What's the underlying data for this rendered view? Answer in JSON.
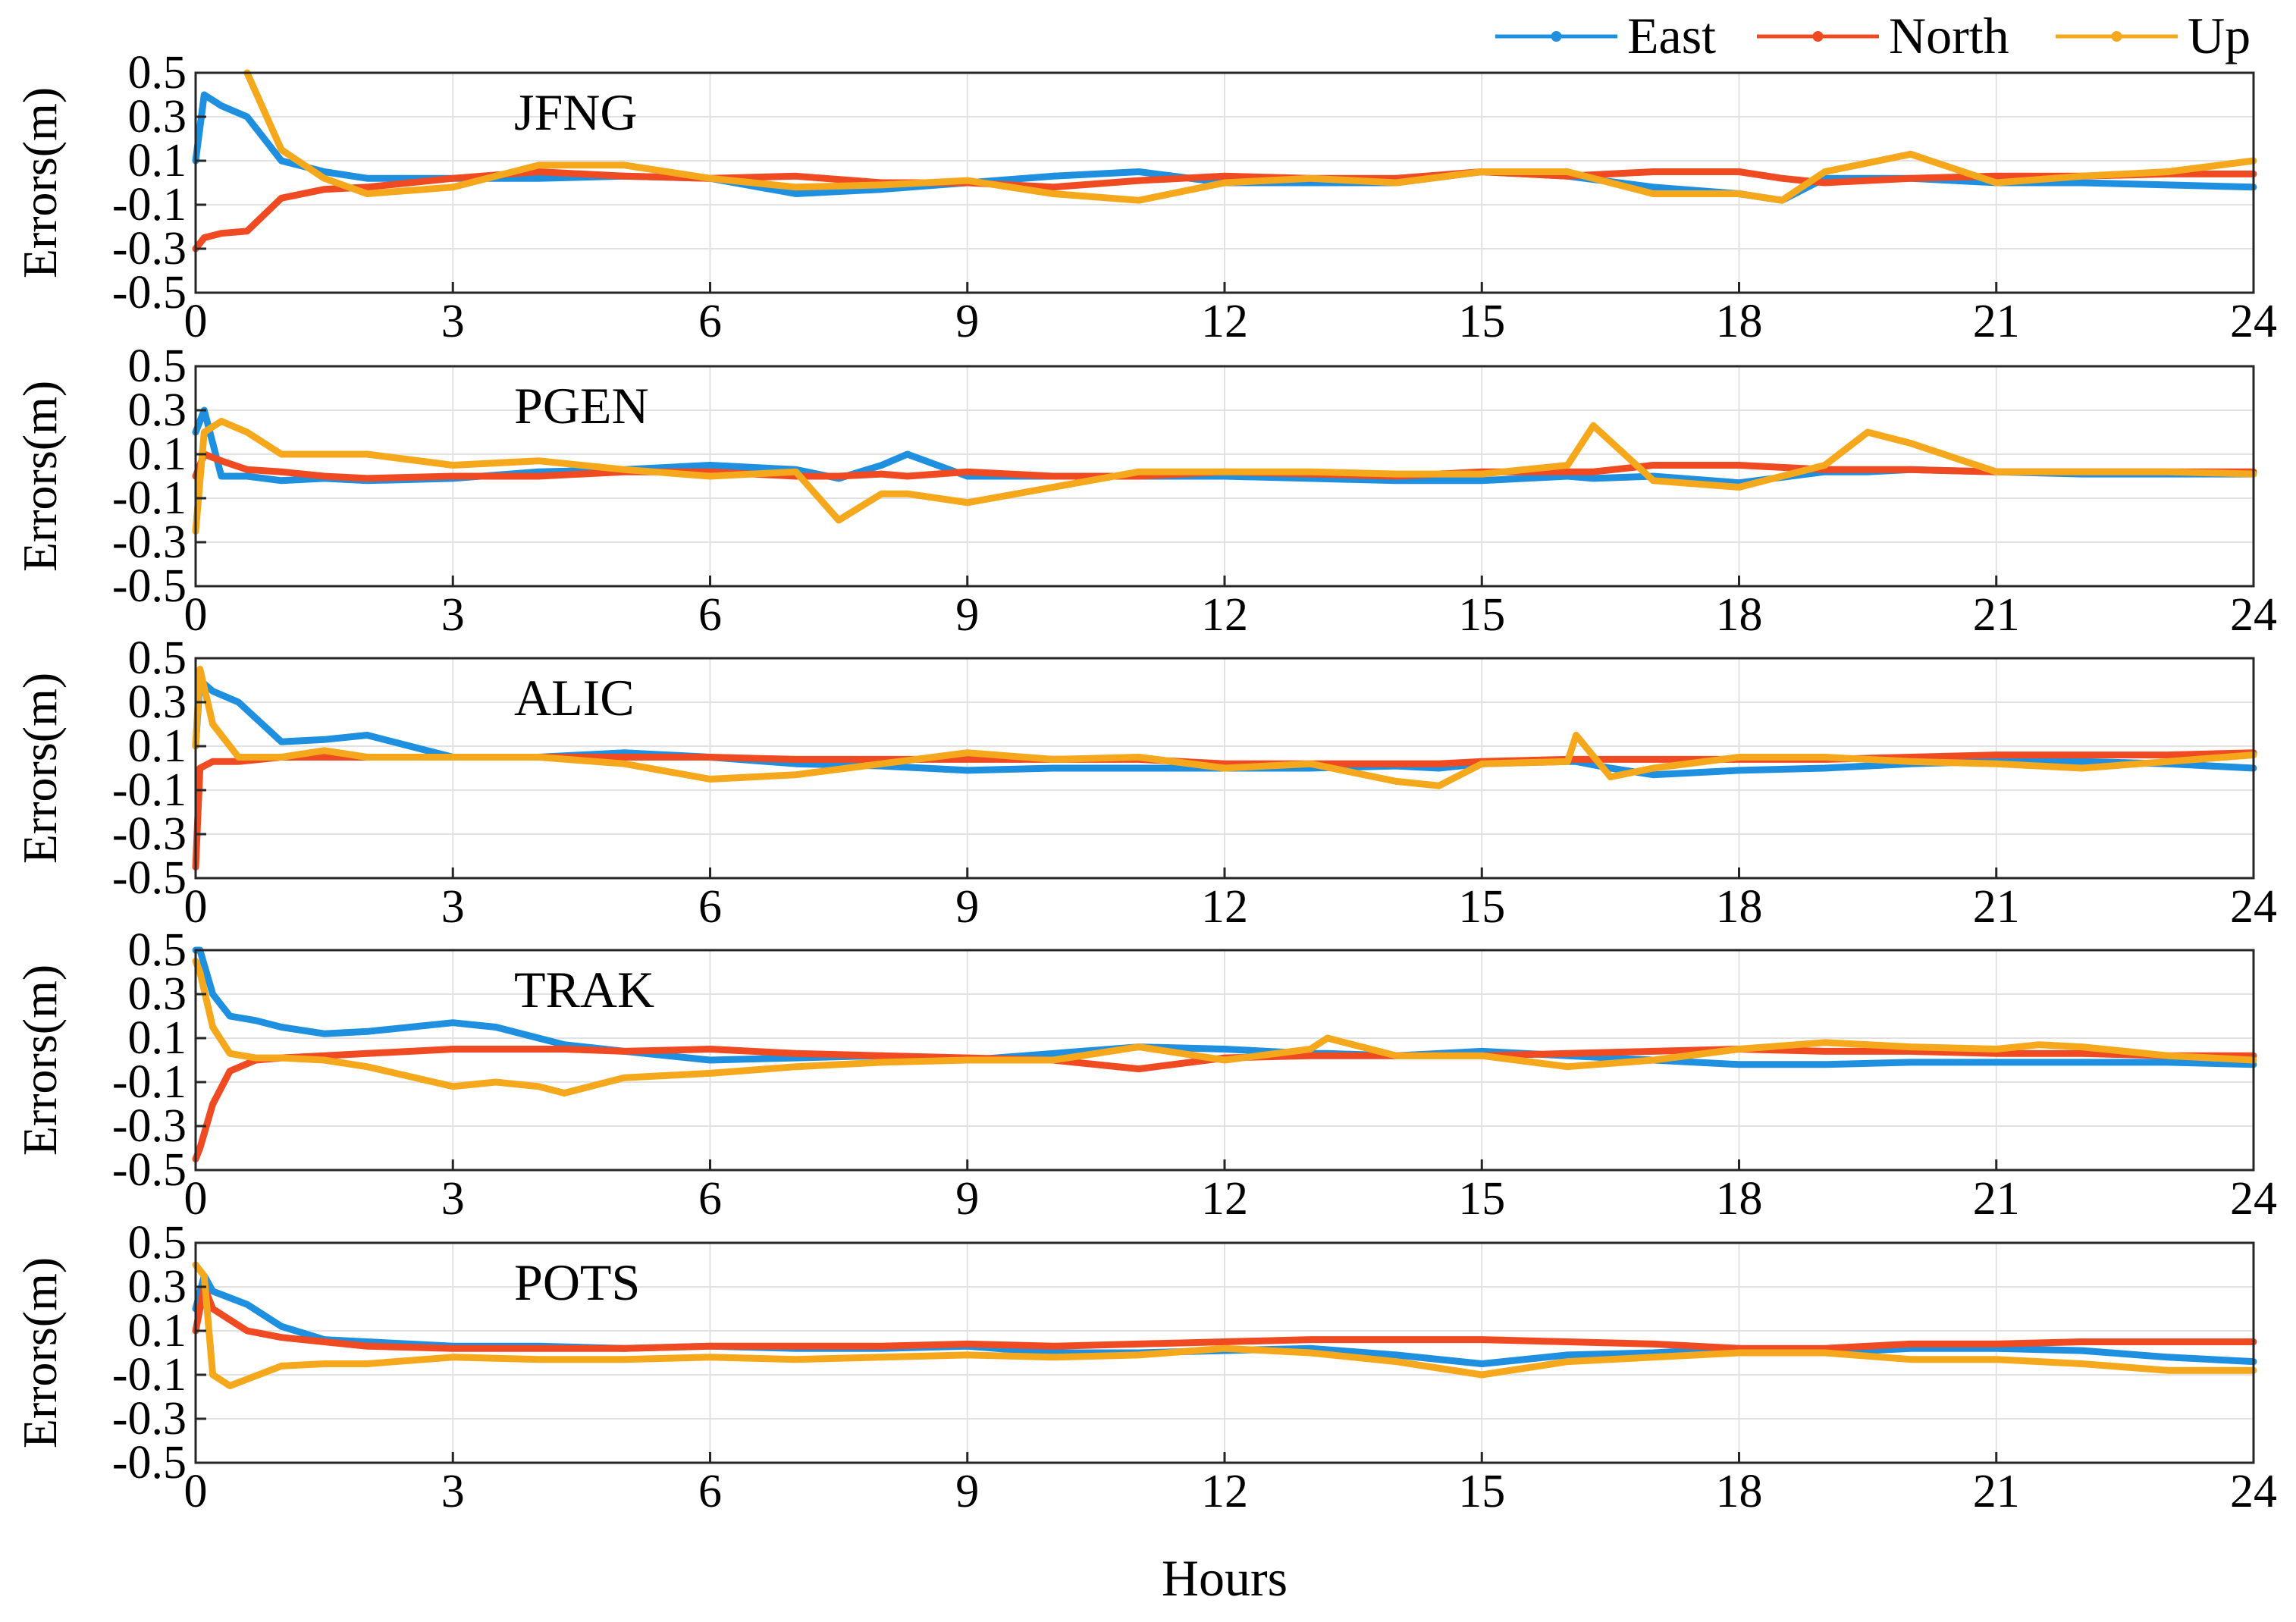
{
  "chart_data": {
    "type": "line",
    "xlabel": "Hours",
    "ylabel": "Errors(m)",
    "xlim": [
      0,
      24
    ],
    "ylim": [
      -0.5,
      0.5
    ],
    "xticks": [
      "0",
      "3",
      "6",
      "9",
      "12",
      "15",
      "18",
      "21",
      "24"
    ],
    "yticks": [
      "0.5",
      "0.3",
      "0.1",
      "-0.1",
      "-0.3",
      "-0.5"
    ],
    "grid": true,
    "legend": {
      "placement": "top-right",
      "entries": [
        {
          "name": "East",
          "color": "#1f8fe0"
        },
        {
          "name": "North",
          "color": "#f04a23"
        },
        {
          "name": "Up",
          "color": "#f5a81c"
        }
      ]
    },
    "panels": [
      {
        "station": "JFNG",
        "x": [
          0,
          0.1,
          0.3,
          0.6,
          1,
          1.5,
          2,
          3,
          4,
          5,
          6,
          7,
          8,
          9,
          10,
          11,
          12,
          13,
          14,
          15,
          16,
          17,
          18,
          18.5,
          19,
          20,
          21,
          22,
          23,
          24
        ],
        "series": [
          {
            "name": "East",
            "values": [
              0.1,
              0.4,
              0.35,
              0.3,
              0.1,
              0.05,
              0.02,
              0.02,
              0.02,
              0.03,
              0.02,
              -0.05,
              -0.03,
              0,
              0.03,
              0.05,
              0,
              0,
              0,
              0.05,
              0.03,
              -0.02,
              -0.05,
              -0.08,
              0.02,
              0.02,
              0,
              0,
              -0.01,
              -0.02
            ]
          },
          {
            "name": "North",
            "values": [
              -0.3,
              -0.25,
              -0.23,
              -0.22,
              -0.07,
              -0.03,
              -0.02,
              0.02,
              0.05,
              0.03,
              0.02,
              0.03,
              0,
              0,
              -0.02,
              0.01,
              0.03,
              0.02,
              0.02,
              0.05,
              0.03,
              0.05,
              0.05,
              0.02,
              0,
              0.02,
              0.03,
              0.03,
              0.04,
              0.04
            ]
          },
          {
            "name": "Up",
            "values": [
              null,
              null,
              null,
              0.5,
              0.15,
              0.02,
              -0.05,
              -0.02,
              0.08,
              0.08,
              0.02,
              -0.02,
              -0.01,
              0.01,
              -0.05,
              -0.08,
              0,
              0.02,
              0,
              0.05,
              0.05,
              -0.05,
              -0.05,
              -0.08,
              0.05,
              0.13,
              0,
              0.03,
              0.05,
              0.1
            ]
          }
        ]
      },
      {
        "station": "PGEN",
        "x": [
          0,
          0.1,
          0.3,
          0.6,
          1,
          1.5,
          2,
          3,
          4,
          5,
          6,
          7,
          7.5,
          8,
          8.3,
          9,
          10,
          11,
          12,
          13,
          14,
          15,
          16,
          16.3,
          17,
          18,
          19,
          19.5,
          20,
          21,
          22,
          23,
          24
        ],
        "series": [
          {
            "name": "East",
            "values": [
              0.2,
              0.3,
              0,
              0,
              -0.02,
              -0.01,
              -0.02,
              -0.01,
              0.02,
              0.03,
              0.05,
              0.03,
              -0.01,
              0.05,
              0.1,
              0,
              0,
              0,
              0,
              -0.01,
              -0.02,
              -0.02,
              0,
              -0.01,
              0,
              -0.03,
              0.02,
              0.02,
              0.03,
              0.02,
              0.01,
              0.01,
              0.01
            ]
          },
          {
            "name": "North",
            "values": [
              0,
              0.1,
              0.07,
              0.03,
              0.02,
              0,
              -0.01,
              0,
              0,
              0.02,
              0.02,
              0,
              0,
              0.01,
              0,
              0.02,
              0,
              0,
              0.02,
              0.01,
              0,
              0.02,
              0.02,
              0.02,
              0.05,
              0.05,
              0.03,
              0.03,
              0.03,
              0.02,
              0.02,
              0.02,
              0.02
            ]
          },
          {
            "name": "Up",
            "values": [
              -0.25,
              0.2,
              0.25,
              0.2,
              0.1,
              0.1,
              0.1,
              0.05,
              0.07,
              0.03,
              0,
              0.02,
              -0.2,
              -0.08,
              -0.08,
              -0.12,
              -0.05,
              0.02,
              0.02,
              0.02,
              0.01,
              0.01,
              0.05,
              0.23,
              -0.02,
              -0.05,
              0.05,
              0.2,
              0.15,
              0.02,
              0.02,
              0.02,
              0.01
            ]
          }
        ]
      },
      {
        "station": "ALIC",
        "x": [
          0,
          0.05,
          0.2,
          0.5,
          1,
          1.5,
          2,
          3,
          4,
          5,
          6,
          7,
          8,
          9,
          10,
          11,
          12,
          13,
          14,
          14.5,
          15,
          16,
          16.1,
          16.5,
          17,
          18,
          19,
          20,
          21,
          22,
          23,
          24
        ],
        "series": [
          {
            "name": "East",
            "values": [
              0.1,
              0.4,
              0.35,
              0.3,
              0.12,
              0.13,
              0.15,
              0.05,
              0.05,
              0.07,
              0.05,
              0.02,
              0.01,
              -0.01,
              0,
              0,
              0,
              0,
              0.01,
              0,
              0.02,
              0.03,
              0.03,
              0,
              -0.03,
              -0.01,
              0,
              0.02,
              0.03,
              0.03,
              0.02,
              0
            ]
          },
          {
            "name": "North",
            "values": [
              -0.45,
              0,
              0.03,
              0.03,
              0.05,
              0.05,
              0.05,
              0.05,
              0.05,
              0.05,
              0.05,
              0.04,
              0.04,
              0.04,
              0.04,
              0.04,
              0.02,
              0.02,
              0.02,
              0.02,
              0.03,
              0.04,
              0.04,
              0.04,
              0.04,
              0.04,
              0.04,
              0.05,
              0.06,
              0.06,
              0.06,
              0.07
            ]
          },
          {
            "name": "Up",
            "values": [
              0.1,
              0.45,
              0.2,
              0.05,
              0.05,
              0.08,
              0.05,
              0.05,
              0.05,
              0.02,
              -0.05,
              -0.03,
              0.02,
              0.07,
              0.04,
              0.05,
              0,
              0.02,
              -0.06,
              -0.08,
              0.02,
              0.03,
              0.15,
              -0.04,
              0,
              0.05,
              0.05,
              0.03,
              0.02,
              0,
              0.03,
              0.06
            ]
          }
        ]
      },
      {
        "station": "TRAK",
        "x": [
          0,
          0.05,
          0.2,
          0.4,
          0.7,
          1,
          1.5,
          2,
          3,
          3.5,
          4,
          4.3,
          5,
          6,
          7,
          8,
          9,
          10,
          11,
          12,
          13,
          13.2,
          14,
          15,
          16,
          17,
          18,
          19,
          20,
          21,
          21.5,
          22,
          23,
          24
        ],
        "series": [
          {
            "name": "East",
            "values": [
              0.5,
              0.5,
              0.3,
              0.2,
              0.18,
              0.15,
              0.12,
              0.13,
              0.17,
              0.15,
              0.1,
              0.07,
              0.04,
              0,
              0.01,
              0.02,
              0,
              0.03,
              0.06,
              0.05,
              0.03,
              0.03,
              0.02,
              0.04,
              0.02,
              0,
              -0.02,
              -0.02,
              -0.01,
              -0.01,
              -0.01,
              -0.01,
              -0.01,
              -0.02
            ]
          },
          {
            "name": "North",
            "values": [
              -0.45,
              -0.4,
              -0.2,
              -0.05,
              0,
              0.01,
              0.02,
              0.03,
              0.05,
              0.05,
              0.05,
              0.05,
              0.04,
              0.05,
              0.03,
              0.02,
              0.01,
              0,
              -0.04,
              0.01,
              0.02,
              0.02,
              0.02,
              0.02,
              0.03,
              0.04,
              0.05,
              0.04,
              0.04,
              0.03,
              0.03,
              0.03,
              0.02,
              0.02
            ]
          },
          {
            "name": "Up",
            "values": [
              0.45,
              0.4,
              0.15,
              0.03,
              0.01,
              0.01,
              0,
              -0.03,
              -0.12,
              -0.1,
              -0.12,
              -0.15,
              -0.08,
              -0.06,
              -0.03,
              -0.01,
              0,
              0,
              0.06,
              0,
              0.05,
              0.1,
              0.02,
              0.02,
              -0.03,
              0,
              0.05,
              0.08,
              0.06,
              0.05,
              0.07,
              0.06,
              0.02,
              0
            ]
          }
        ]
      },
      {
        "station": "POTS",
        "x": [
          0,
          0.1,
          0.2,
          0.4,
          0.6,
          1,
          1.5,
          2,
          3,
          4,
          5,
          6,
          7,
          8,
          9,
          10,
          11,
          12,
          13,
          14,
          15,
          16,
          17,
          18,
          19,
          20,
          21,
          22,
          23,
          24
        ],
        "series": [
          {
            "name": "East",
            "values": [
              0.2,
              0.35,
              0.28,
              0.25,
              0.22,
              0.12,
              0.06,
              0.05,
              0.03,
              0.03,
              0.02,
              0.03,
              0.02,
              0.02,
              0.03,
              0,
              0,
              0.01,
              0.02,
              -0.01,
              -0.05,
              -0.01,
              0,
              0.02,
              0,
              0.02,
              0.02,
              0.01,
              -0.02,
              -0.04
            ]
          },
          {
            "name": "North",
            "values": [
              0.1,
              0.3,
              0.2,
              0.15,
              0.1,
              0.07,
              0.05,
              0.03,
              0.02,
              0.02,
              0.02,
              0.03,
              0.03,
              0.03,
              0.04,
              0.03,
              0.04,
              0.05,
              0.06,
              0.06,
              0.06,
              0.05,
              0.04,
              0.02,
              0.02,
              0.04,
              0.04,
              0.05,
              0.05,
              0.05
            ]
          },
          {
            "name": "Up",
            "values": [
              0.4,
              0.35,
              -0.1,
              -0.15,
              -0.12,
              -0.06,
              -0.05,
              -0.05,
              -0.02,
              -0.03,
              -0.03,
              -0.02,
              -0.03,
              -0.02,
              -0.01,
              -0.02,
              -0.01,
              0.02,
              0,
              -0.04,
              -0.1,
              -0.04,
              -0.02,
              0,
              0,
              -0.03,
              -0.03,
              -0.05,
              -0.08,
              -0.08
            ]
          }
        ]
      }
    ]
  }
}
